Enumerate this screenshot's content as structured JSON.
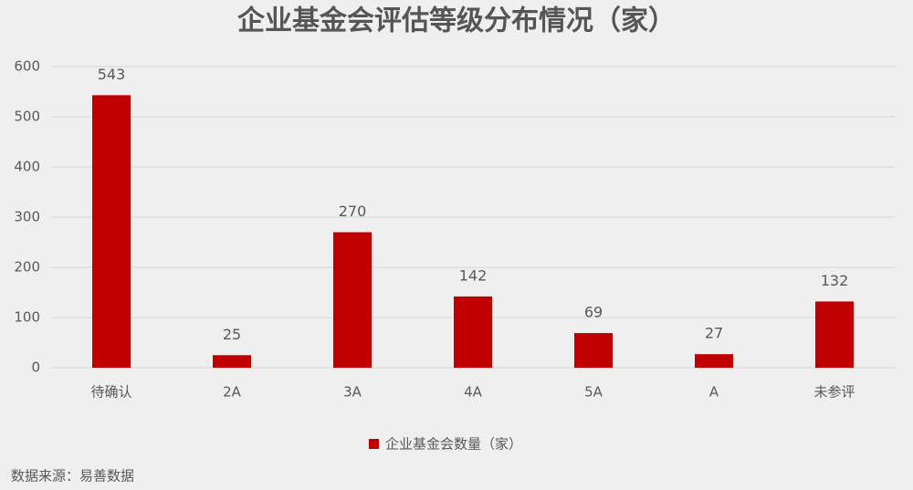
{
  "chart_data": {
    "type": "bar",
    "title": "企业基金会评估等级分布情况（家）",
    "categories": [
      "待确认",
      "2A",
      "3A",
      "4A",
      "5A",
      "A",
      "未参评"
    ],
    "series": [
      {
        "name": "企业基金会数量（家）",
        "color": "#c00000",
        "values": [
          543,
          25,
          270,
          142,
          69,
          27,
          132
        ]
      }
    ],
    "ylim": [
      0,
      600
    ],
    "yticks": [
      0,
      100,
      200,
      300,
      400,
      500,
      600
    ],
    "grid": true,
    "legend": "bottom",
    "source": "数据来源：易善数据"
  }
}
